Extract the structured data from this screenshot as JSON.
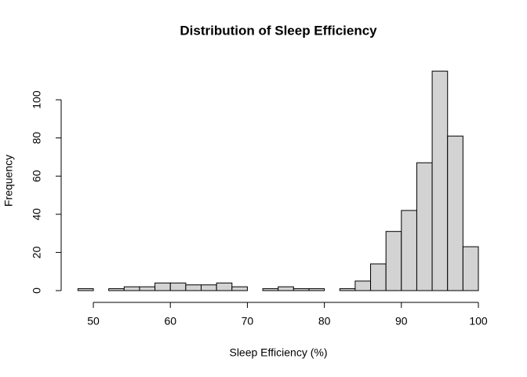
{
  "chart_data": {
    "type": "histogram",
    "title": "Distribution of Sleep Efficiency",
    "x_label": "Sleep Efficiency (%)",
    "y_label": "Frequency",
    "bins": [
      48,
      50,
      52,
      54,
      56,
      58,
      60,
      62,
      64,
      66,
      68,
      70,
      72,
      74,
      76,
      78,
      80,
      82,
      84,
      86,
      88,
      90,
      92,
      94,
      96,
      98,
      100
    ],
    "values": [
      1,
      0,
      1,
      2,
      2,
      4,
      4,
      3,
      3,
      4,
      2,
      0,
      1,
      2,
      1,
      1,
      0,
      1,
      5,
      14,
      31,
      42,
      67,
      115,
      81,
      23
    ],
    "color": "#d3d3d3",
    "xlim": [
      48,
      100
    ],
    "xticks": [
      50,
      60,
      70,
      80,
      90,
      100
    ],
    "ylim": [
      0,
      115
    ],
    "yticks": [
      0,
      20,
      40,
      60,
      80,
      100
    ]
  }
}
